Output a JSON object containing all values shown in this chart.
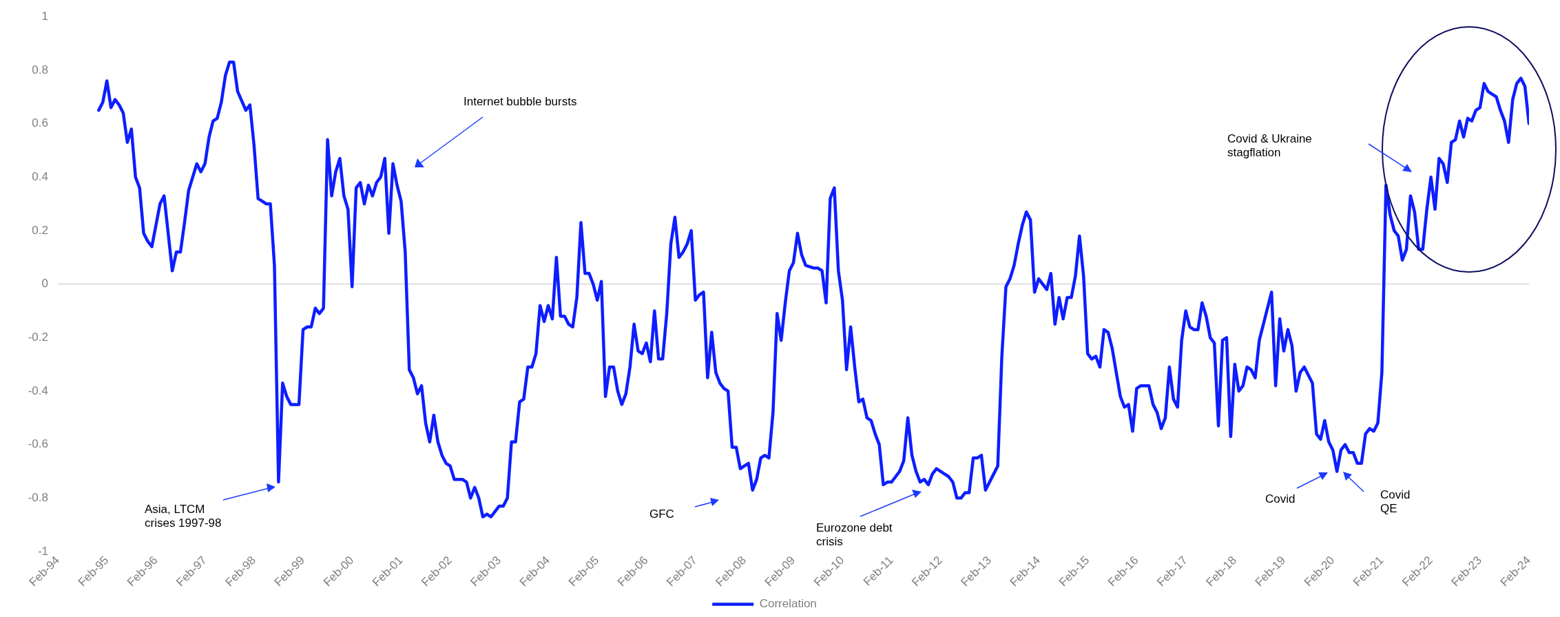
{
  "chart_data": {
    "type": "line",
    "legend": "bottom",
    "marker": "none",
    "line_style": "solid",
    "xlim": [
      "1994-02",
      "2024-02"
    ],
    "xticks": [
      {
        "value": "1994-02",
        "label": "Feb-94"
      },
      {
        "value": "1995-02",
        "label": "Feb-95"
      },
      {
        "value": "1996-02",
        "label": "Feb-96"
      },
      {
        "value": "1997-02",
        "label": "Feb-97"
      },
      {
        "value": "1998-02",
        "label": "Feb-98"
      },
      {
        "value": "1999-02",
        "label": "Feb-99"
      },
      {
        "value": "2000-02",
        "label": "Feb-00"
      },
      {
        "value": "2001-02",
        "label": "Feb-01"
      },
      {
        "value": "2002-02",
        "label": "Feb-02"
      },
      {
        "value": "2003-02",
        "label": "Feb-03"
      },
      {
        "value": "2004-02",
        "label": "Feb-04"
      },
      {
        "value": "2005-02",
        "label": "Feb-05"
      },
      {
        "value": "2006-02",
        "label": "Feb-06"
      },
      {
        "value": "2007-02",
        "label": "Feb-07"
      },
      {
        "value": "2008-02",
        "label": "Feb-08"
      },
      {
        "value": "2009-02",
        "label": "Feb-09"
      },
      {
        "value": "2010-02",
        "label": "Feb-10"
      },
      {
        "value": "2011-02",
        "label": "Feb-11"
      },
      {
        "value": "2012-02",
        "label": "Feb-12"
      },
      {
        "value": "2013-02",
        "label": "Feb-13"
      },
      {
        "value": "2014-02",
        "label": "Feb-14"
      },
      {
        "value": "2015-02",
        "label": "Feb-15"
      },
      {
        "value": "2016-02",
        "label": "Feb-16"
      },
      {
        "value": "2017-02",
        "label": "Feb-17"
      },
      {
        "value": "2018-02",
        "label": "Feb-18"
      },
      {
        "value": "2019-02",
        "label": "Feb-19"
      },
      {
        "value": "2020-02",
        "label": "Feb-20"
      },
      {
        "value": "2021-02",
        "label": "Feb-21"
      },
      {
        "value": "2022-02",
        "label": "Feb-22"
      },
      {
        "value": "2023-02",
        "label": "Feb-23"
      },
      {
        "value": "2024-02",
        "label": "Feb-24"
      }
    ],
    "ylim": [
      -1,
      1
    ],
    "yticks": [
      -1,
      -0.8,
      -0.6,
      -0.4,
      -0.2,
      0,
      0.2,
      0.4,
      0.6,
      0.8,
      1
    ],
    "annotations": [
      "Internet bubble bursts",
      "Asia, LTCM\ncrises 1997-98",
      "GFC",
      "Eurozone debt\ncrisis",
      "Covid & Ukraine\nstagflation",
      "Covid",
      "Covid\nQE"
    ],
    "series": [
      {
        "name": "Correlation",
        "color": "#0d1eff",
        "x": [
          "1994-12",
          "1995-01",
          "1995-02",
          "1995-03",
          "1995-04",
          "1995-05",
          "1995-06",
          "1995-07",
          "1995-08",
          "1995-09",
          "1995-10",
          "1995-11",
          "1995-12",
          "1996-01",
          "1996-03",
          "1996-04",
          "1996-06",
          "1996-07",
          "1996-08",
          "1996-09",
          "1996-10",
          "1996-12",
          "1997-01",
          "1997-02",
          "1997-03",
          "1997-04",
          "1997-05",
          "1997-06",
          "1997-07",
          "1997-08",
          "1997-09",
          "1997-10",
          "1997-12",
          "1998-01",
          "1998-02",
          "1998-03",
          "1998-04",
          "1998-05",
          "1998-06",
          "1998-07",
          "1998-08",
          "1998-09",
          "1998-10",
          "1998-11",
          "1998-12",
          "1999-01",
          "1999-02",
          "1999-03",
          "1999-04",
          "1999-05",
          "1999-06",
          "1999-07",
          "1999-08",
          "1999-09",
          "1999-10",
          "1999-11",
          "1999-12",
          "2000-01",
          "2000-02",
          "2000-03",
          "2000-04",
          "2000-05",
          "2000-06",
          "2000-07",
          "2000-08",
          "2000-09",
          "2000-10",
          "2000-11",
          "2000-12",
          "2001-01",
          "2001-02",
          "2001-03",
          "2001-04",
          "2001-05",
          "2001-06",
          "2001-07",
          "2001-08",
          "2001-09",
          "2001-10",
          "2001-11",
          "2001-12",
          "2002-01",
          "2002-02",
          "2002-03",
          "2002-05",
          "2002-06",
          "2002-07",
          "2002-08",
          "2002-09",
          "2002-10",
          "2002-11",
          "2002-12",
          "2003-01",
          "2003-02",
          "2003-03",
          "2003-04",
          "2003-05",
          "2003-06",
          "2003-07",
          "2003-08",
          "2003-09",
          "2003-10",
          "2003-11",
          "2003-12",
          "2004-01",
          "2004-02",
          "2004-03",
          "2004-04",
          "2004-05",
          "2004-06",
          "2004-07",
          "2004-08",
          "2004-09",
          "2004-10",
          "2004-11",
          "2004-12",
          "2005-01",
          "2005-02",
          "2005-03",
          "2005-04",
          "2005-05",
          "2005-06",
          "2005-07",
          "2005-08",
          "2005-09",
          "2005-10",
          "2005-11",
          "2005-12",
          "2006-01",
          "2006-02",
          "2006-03",
          "2006-04",
          "2006-05",
          "2006-06",
          "2006-07",
          "2006-08",
          "2006-09",
          "2006-10",
          "2006-11",
          "2006-12",
          "2007-01",
          "2007-02",
          "2007-03",
          "2007-04",
          "2007-05",
          "2007-06",
          "2007-07",
          "2007-08",
          "2007-09",
          "2007-10",
          "2007-11",
          "2007-12",
          "2008-01",
          "2008-02",
          "2008-03",
          "2008-04",
          "2008-05",
          "2008-06",
          "2008-07",
          "2008-08",
          "2008-09",
          "2008-10",
          "2008-11",
          "2008-12",
          "2009-01",
          "2009-02",
          "2009-03",
          "2009-04",
          "2009-05",
          "2009-07",
          "2009-08",
          "2009-09",
          "2009-10",
          "2009-11",
          "2009-12",
          "2010-01",
          "2010-02",
          "2010-03",
          "2010-04",
          "2010-05",
          "2010-06",
          "2010-07",
          "2010-08",
          "2010-09",
          "2010-10",
          "2010-11",
          "2010-12",
          "2011-01",
          "2011-02",
          "2011-03",
          "2011-04",
          "2011-05",
          "2011-06",
          "2011-07",
          "2011-08",
          "2011-09",
          "2011-10",
          "2011-11",
          "2011-12",
          "2012-01",
          "2012-03",
          "2012-04",
          "2012-05",
          "2012-06",
          "2012-07",
          "2012-08",
          "2012-09",
          "2012-10",
          "2012-11",
          "2012-12",
          "2013-01",
          "2013-02",
          "2013-03",
          "2013-04",
          "2013-05",
          "2013-06",
          "2013-07",
          "2013-08",
          "2013-09",
          "2013-10",
          "2013-11",
          "2013-12",
          "2014-01",
          "2014-02",
          "2014-03",
          "2014-04",
          "2014-05",
          "2014-06",
          "2014-07",
          "2014-08",
          "2014-09",
          "2014-10",
          "2014-11",
          "2014-12",
          "2015-01",
          "2015-02",
          "2015-03",
          "2015-04",
          "2015-05",
          "2015-06",
          "2015-07",
          "2015-08",
          "2015-09",
          "2015-10",
          "2015-11",
          "2015-12",
          "2016-01",
          "2016-02",
          "2016-03",
          "2016-04",
          "2016-05",
          "2016-06",
          "2016-07",
          "2016-08",
          "2016-09",
          "2016-10",
          "2016-11",
          "2016-12",
          "2017-01",
          "2017-02",
          "2017-03",
          "2017-04",
          "2017-05",
          "2017-06",
          "2017-07",
          "2017-08",
          "2017-09",
          "2017-10",
          "2017-11",
          "2017-12",
          "2018-01",
          "2018-02",
          "2018-03",
          "2018-04",
          "2018-05",
          "2018-06",
          "2018-07",
          "2018-08",
          "2018-09",
          "2018-10",
          "2018-11",
          "2018-12",
          "2019-01",
          "2019-02",
          "2019-03",
          "2019-04",
          "2019-05",
          "2019-06",
          "2019-07",
          "2019-08",
          "2019-09",
          "2019-10",
          "2019-11",
          "2019-12",
          "2020-01",
          "2020-02",
          "2020-03",
          "2020-04",
          "2020-05",
          "2020-06",
          "2020-07",
          "2020-08",
          "2020-09",
          "2020-10",
          "2020-11",
          "2020-12",
          "2021-01",
          "2021-02",
          "2021-03",
          "2021-04",
          "2021-05",
          "2021-06",
          "2021-07",
          "2021-08",
          "2021-09",
          "2021-10",
          "2021-11",
          "2021-12",
          "2022-01",
          "2022-02",
          "2022-03",
          "2022-04",
          "2022-05",
          "2022-06",
          "2022-07",
          "2022-08",
          "2022-09",
          "2022-10",
          "2022-11",
          "2022-12",
          "2023-01",
          "2023-02",
          "2023-03",
          "2023-04",
          "2023-05",
          "2023-06",
          "2023-07",
          "2023-08",
          "2023-09",
          "2023-10",
          "2023-11",
          "2023-12",
          "2024-01",
          "2024-02"
        ],
        "values": [
          0.65,
          0.68,
          0.76,
          0.66,
          0.69,
          0.67,
          0.64,
          0.53,
          0.58,
          0.4,
          0.36,
          0.19,
          0.16,
          0.14,
          0.3,
          0.33,
          0.05,
          0.12,
          0.12,
          0.23,
          0.35,
          0.45,
          0.42,
          0.45,
          0.55,
          0.61,
          0.62,
          0.68,
          0.78,
          0.83,
          0.83,
          0.72,
          0.65,
          0.67,
          0.52,
          0.32,
          0.31,
          0.3,
          0.3,
          0.07,
          -0.74,
          -0.37,
          -0.42,
          -0.45,
          -0.45,
          -0.45,
          -0.17,
          -0.16,
          -0.16,
          -0.09,
          -0.11,
          -0.09,
          0.54,
          0.33,
          0.42,
          0.47,
          0.33,
          0.28,
          -0.01,
          0.36,
          0.38,
          0.3,
          0.37,
          0.33,
          0.38,
          0.4,
          0.47,
          0.19,
          0.45,
          0.37,
          0.31,
          0.12,
          -0.32,
          -0.35,
          -0.41,
          -0.38,
          -0.52,
          -0.59,
          -0.49,
          -0.59,
          -0.64,
          -0.67,
          -0.68,
          -0.73,
          -0.73,
          -0.74,
          -0.8,
          -0.76,
          -0.8,
          -0.87,
          -0.86,
          -0.87,
          -0.85,
          -0.83,
          -0.83,
          -0.8,
          -0.59,
          -0.59,
          -0.44,
          -0.43,
          -0.31,
          -0.31,
          -0.26,
          -0.08,
          -0.14,
          -0.08,
          -0.13,
          0.1,
          -0.12,
          -0.12,
          -0.15,
          -0.16,
          -0.05,
          0.23,
          0.04,
          0.04,
          0,
          -0.06,
          0.01,
          -0.42,
          -0.31,
          -0.31,
          -0.4,
          -0.45,
          -0.41,
          -0.31,
          -0.15,
          -0.25,
          -0.26,
          -0.22,
          -0.29,
          -0.1,
          -0.28,
          -0.28,
          -0.11,
          0.15,
          0.25,
          0.1,
          0.12,
          0.15,
          0.2,
          -0.06,
          -0.04,
          -0.03,
          -0.35,
          -0.18,
          -0.33,
          -0.37,
          -0.39,
          -0.4,
          -0.61,
          -0.61,
          -0.69,
          -0.68,
          -0.67,
          -0.77,
          -0.73,
          -0.65,
          -0.64,
          -0.65,
          -0.48,
          -0.11,
          -0.21,
          -0.07,
          0.05,
          0.08,
          0.19,
          0.11,
          0.07,
          0.06,
          0.06,
          0.05,
          -0.07,
          0.32,
          0.36,
          0.05,
          -0.06,
          -0.32,
          -0.16,
          -0.31,
          -0.44,
          -0.43,
          -0.5,
          -0.51,
          -0.56,
          -0.6,
          -0.75,
          -0.74,
          -0.74,
          -0.72,
          -0.7,
          -0.66,
          -0.5,
          -0.64,
          -0.7,
          -0.74,
          -0.73,
          -0.75,
          -0.71,
          -0.69,
          -0.71,
          -0.72,
          -0.74,
          -0.8,
          -0.8,
          -0.78,
          -0.78,
          -0.65,
          -0.65,
          -0.64,
          -0.77,
          -0.74,
          -0.71,
          -0.68,
          -0.27,
          -0.01,
          0.02,
          0.07,
          0.15,
          0.22,
          0.27,
          0.24,
          -0.03,
          0.02,
          0,
          -0.02,
          0.04,
          -0.15,
          -0.05,
          -0.13,
          -0.05,
          -0.05,
          0.03,
          0.18,
          0.03,
          -0.26,
          -0.28,
          -0.27,
          -0.31,
          -0.17,
          -0.18,
          -0.24,
          -0.33,
          -0.42,
          -0.46,
          -0.45,
          -0.55,
          -0.39,
          -0.38,
          -0.38,
          -0.38,
          -0.45,
          -0.48,
          -0.54,
          -0.5,
          -0.31,
          -0.43,
          -0.46,
          -0.21,
          -0.1,
          -0.16,
          -0.17,
          -0.17,
          -0.07,
          -0.12,
          -0.2,
          -0.22,
          -0.53,
          -0.21,
          -0.2,
          -0.57,
          -0.3,
          -0.4,
          -0.38,
          -0.31,
          -0.32,
          -0.35,
          -0.21,
          -0.15,
          -0.09,
          -0.03,
          -0.38,
          -0.13,
          -0.25,
          -0.17,
          -0.23,
          -0.4,
          -0.33,
          -0.31,
          -0.34,
          -0.37,
          -0.56,
          -0.58,
          -0.51,
          -0.59,
          -0.62,
          -0.7,
          -0.62,
          -0.6,
          -0.63,
          -0.63,
          -0.67,
          -0.67,
          -0.56,
          -0.54,
          -0.55,
          -0.52,
          -0.33,
          0.37,
          0.26,
          0.2,
          0.18,
          0.09,
          0.13,
          0.33,
          0.27,
          0.13,
          0.13,
          0.28,
          0.4,
          0.28,
          0.47,
          0.45,
          0.38,
          0.53,
          0.54,
          0.61,
          0.55,
          0.62,
          0.61,
          0.65,
          0.66,
          0.75,
          0.72,
          0.71,
          0.7,
          0.65,
          0.61,
          0.53,
          0.69,
          0.75,
          0.77,
          0.74,
          0.6
        ]
      }
    ]
  }
}
